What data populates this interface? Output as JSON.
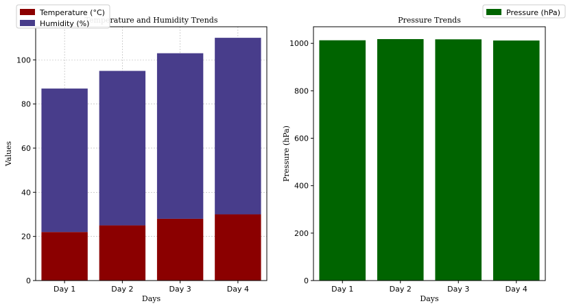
{
  "chart_data": [
    {
      "type": "bar",
      "stacked": true,
      "title": "Temperature and Humidity Trends",
      "xlabel": "Days",
      "ylabel": "Values",
      "categories": [
        "Day 1",
        "Day 2",
        "Day 3",
        "Day 4"
      ],
      "series": [
        {
          "name": "Temperature (°C)",
          "values": [
            22,
            25,
            28,
            30
          ],
          "color": "#8b0000"
        },
        {
          "name": "Humidity (%)",
          "values": [
            65,
            70,
            75,
            80
          ],
          "color": "#483d8b"
        }
      ],
      "ylim": [
        0,
        115
      ],
      "yticks": [
        0,
        20,
        40,
        60,
        80,
        100
      ],
      "grid": true,
      "legend": "top-left"
    },
    {
      "type": "bar",
      "title": "Pressure Trends",
      "xlabel": "Days",
      "ylabel": "Pressure (hPa)",
      "categories": [
        "Day 1",
        "Day 2",
        "Day 3",
        "Day 4"
      ],
      "series": [
        {
          "name": "Pressure (hPa)",
          "values": [
            1013,
            1018,
            1017,
            1012
          ],
          "color": "#006400"
        }
      ],
      "ylim": [
        0,
        1070
      ],
      "yticks": [
        0,
        200,
        400,
        600,
        800,
        1000
      ],
      "grid": false,
      "legend": "top-right"
    }
  ]
}
